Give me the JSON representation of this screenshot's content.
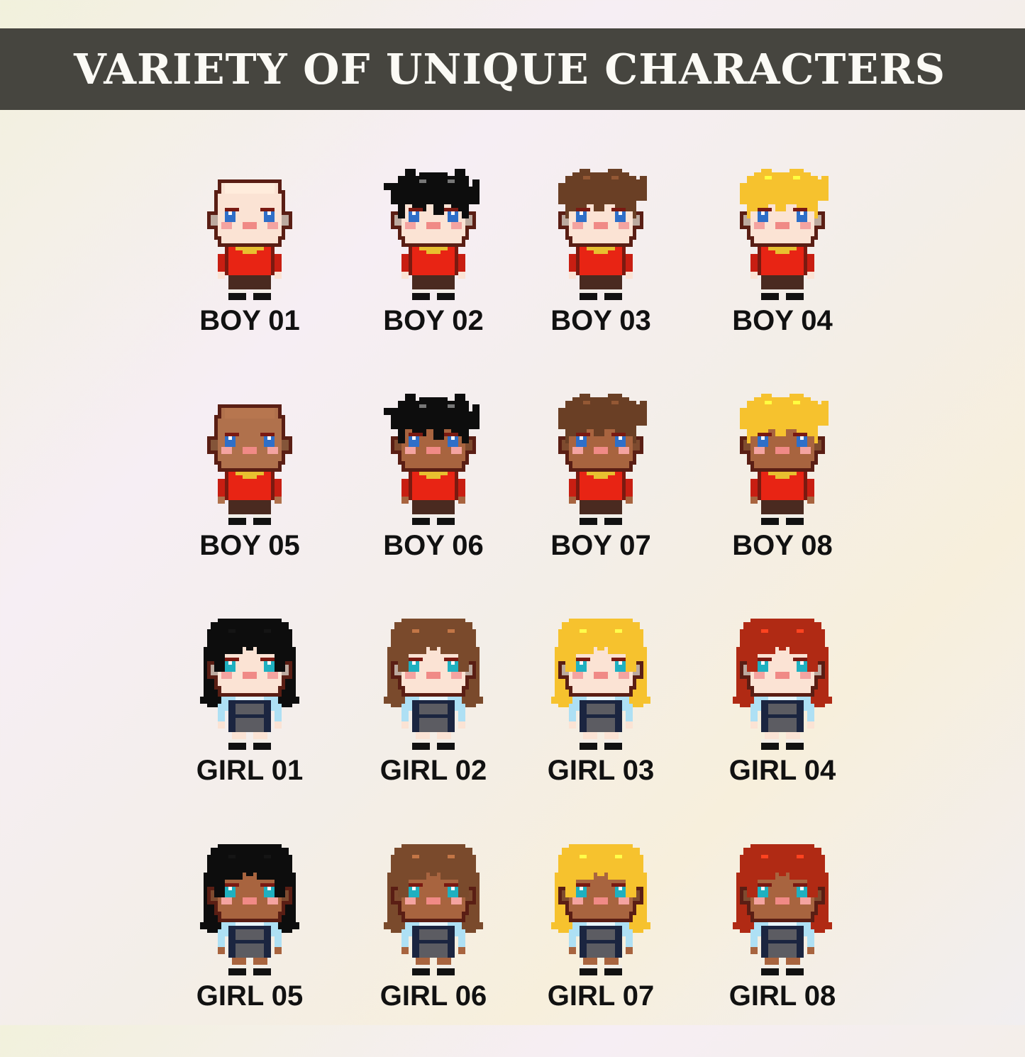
{
  "header": {
    "title": "VARIETY OF UNIQUE CHARACTERS"
  },
  "characters": [
    {
      "label": "BOY 01",
      "outfit": "boy",
      "skin": "#fbe3d4",
      "hair": null,
      "hair_style": "bald"
    },
    {
      "label": "BOY 02",
      "outfit": "boy",
      "skin": "#fbe3d4",
      "hair": "#0d0d0d",
      "hair_style": "spiky"
    },
    {
      "label": "BOY 03",
      "outfit": "boy",
      "skin": "#fbe3d4",
      "hair": "#6a3f25",
      "hair_style": "messy"
    },
    {
      "label": "BOY 04",
      "outfit": "boy",
      "skin": "#fbe3d4",
      "hair": "#f6c22e",
      "hair_style": "messy"
    },
    {
      "label": "BOY 05",
      "outfit": "boy",
      "skin": "#b0714c",
      "hair": null,
      "hair_style": "bald"
    },
    {
      "label": "BOY 06",
      "outfit": "boy",
      "skin": "#a8643f",
      "hair": "#0d0d0d",
      "hair_style": "spiky"
    },
    {
      "label": "BOY 07",
      "outfit": "boy",
      "skin": "#a8643f",
      "hair": "#6a3f25",
      "hair_style": "messy"
    },
    {
      "label": "BOY 08",
      "outfit": "boy",
      "skin": "#a8643f",
      "hair": "#f6c22e",
      "hair_style": "messy"
    },
    {
      "label": "GIRL 01",
      "outfit": "girl",
      "skin": "#fbe3d4",
      "hair": "#0d0d0d",
      "hair_style": "long"
    },
    {
      "label": "GIRL 02",
      "outfit": "girl",
      "skin": "#fbe3d4",
      "hair": "#7a4a2c",
      "hair_style": "long"
    },
    {
      "label": "GIRL 03",
      "outfit": "girl",
      "skin": "#fbe3d4",
      "hair": "#f6c22e",
      "hair_style": "long"
    },
    {
      "label": "GIRL 04",
      "outfit": "girl",
      "skin": "#fbe3d4",
      "hair": "#b02a14",
      "hair_style": "long"
    },
    {
      "label": "GIRL 05",
      "outfit": "girl",
      "skin": "#a8643f",
      "hair": "#0d0d0d",
      "hair_style": "long"
    },
    {
      "label": "GIRL 06",
      "outfit": "girl",
      "skin": "#a8643f",
      "hair": "#7a4a2c",
      "hair_style": "long"
    },
    {
      "label": "GIRL 07",
      "outfit": "girl",
      "skin": "#a8643f",
      "hair": "#f6c22e",
      "hair_style": "long"
    },
    {
      "label": "GIRL 08",
      "outfit": "girl",
      "skin": "#a8643f",
      "hair": "#b02a14",
      "hair_style": "long"
    }
  ]
}
